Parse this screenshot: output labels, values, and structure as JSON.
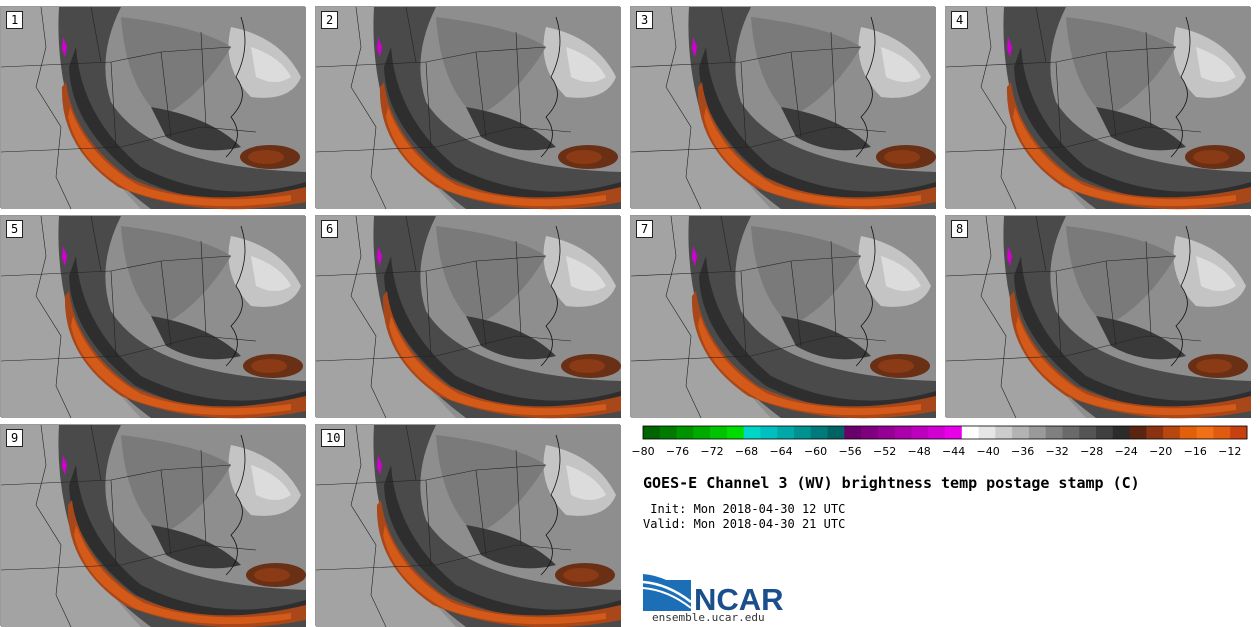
{
  "panels": [
    {
      "label": "1"
    },
    {
      "label": "2"
    },
    {
      "label": "3"
    },
    {
      "label": "4"
    },
    {
      "label": "5"
    },
    {
      "label": "6"
    },
    {
      "label": "7"
    },
    {
      "label": "8"
    },
    {
      "label": "9"
    },
    {
      "label": "10"
    }
  ],
  "colorbar": {
    "tick_labels": [
      "−80",
      "−76",
      "−72",
      "−68",
      "−64",
      "−60",
      "−56",
      "−52",
      "−48",
      "−44",
      "−40",
      "−36",
      "−32",
      "−28",
      "−24",
      "−20",
      "−16",
      "−12"
    ],
    "min": -80,
    "max": -10,
    "step": 2,
    "colors": [
      "#006400",
      "#007b00",
      "#009300",
      "#00ab00",
      "#00c400",
      "#00dc00",
      "#00d6c8",
      "#00bfbf",
      "#00a8a8",
      "#009191",
      "#007a7a",
      "#006363",
      "#6a006a",
      "#7f007f",
      "#940094",
      "#a900a9",
      "#be00be",
      "#d300d3",
      "#e800e8",
      "#ffffff",
      "#e6e6e6",
      "#cccccc",
      "#b3b3b3",
      "#9a9a9a",
      "#808080",
      "#6a6a6a",
      "#555555",
      "#404040",
      "#2c2c2c",
      "#5a2510",
      "#8a3212",
      "#b8470f",
      "#e2600c",
      "#f07016",
      "#e05a10",
      "#c84010"
    ]
  },
  "title": "GOES-E Channel 3 (WV) brightness temp postage stamp (C)",
  "init": " Init: Mon 2018-04-30 12 UTC",
  "valid": "Valid: Mon 2018-04-30 21 UTC",
  "logo": {
    "text": "NCAR",
    "brand_color": "#1a4f8b",
    "accent_color": "#2a7fc1"
  },
  "url": "ensemble.ucar.edu"
}
